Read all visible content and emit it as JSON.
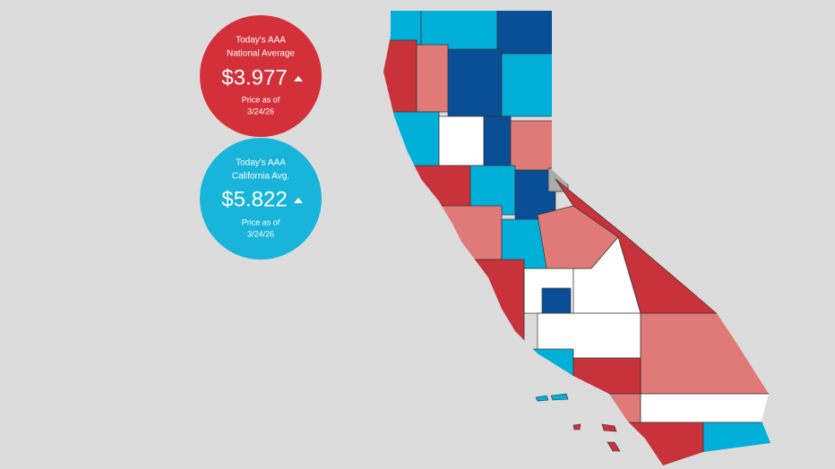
{
  "badges": [
    {
      "line1": "Today's AAA",
      "line2": "National Average",
      "price": "$3.977",
      "note1": "Price as of",
      "note2": "3/24/26"
    },
    {
      "line1": "Today's AAA",
      "line2": "California Avg.",
      "price": "$5.822",
      "note1": "Price as of",
      "note2": "3/24/26"
    }
  ]
}
